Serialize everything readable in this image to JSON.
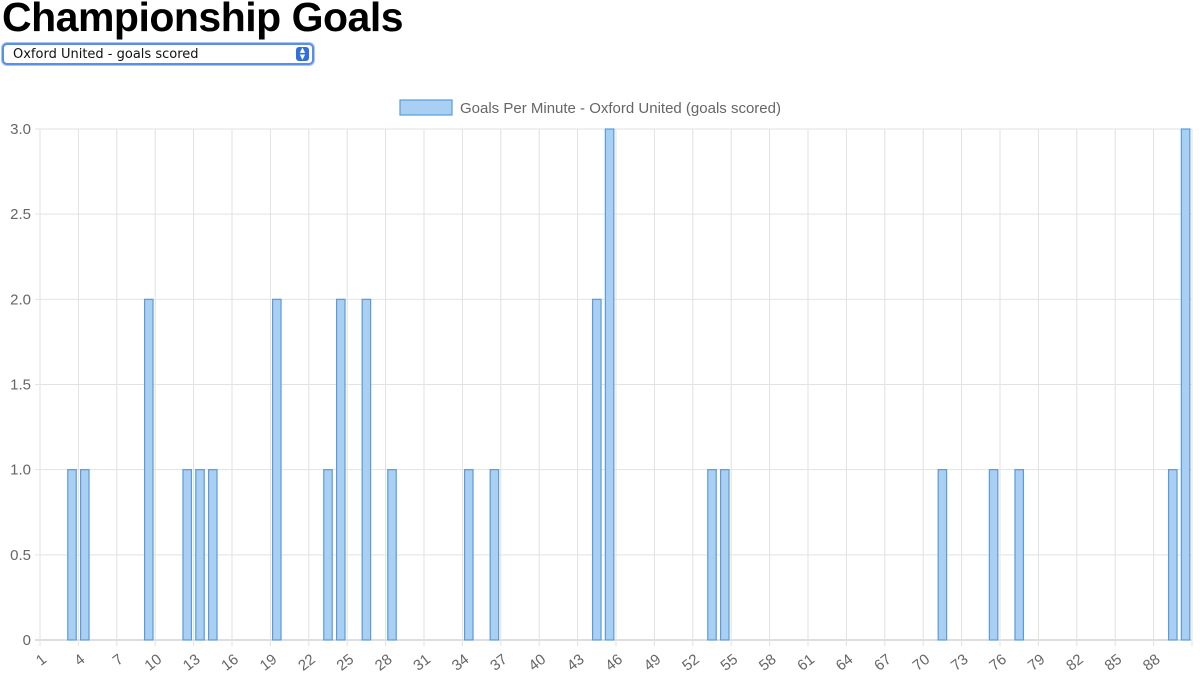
{
  "page": {
    "title": "Championship Goals",
    "select": {
      "selected": "Oxford United - goals scored",
      "arrows_icon": "up-down-chevron-icon"
    }
  },
  "colors": {
    "bar_fill": "#a9d0f3",
    "bar_border": "#5a9bd8",
    "grid": "#e2e2e2",
    "tick_text": "#666666"
  },
  "chart_data": {
    "type": "bar",
    "title": "",
    "legend": {
      "position": "top-center"
    },
    "xlabel": "",
    "ylabel": "",
    "ylim": [
      0,
      3
    ],
    "yticks": [
      "0",
      "0.5",
      "1.0",
      "1.5",
      "2.0",
      "2.5",
      "3.0"
    ],
    "categories": [
      1,
      2,
      3,
      4,
      5,
      6,
      7,
      8,
      9,
      10,
      11,
      12,
      13,
      14,
      15,
      16,
      17,
      18,
      19,
      20,
      21,
      22,
      23,
      24,
      25,
      26,
      27,
      28,
      29,
      30,
      31,
      32,
      33,
      34,
      35,
      36,
      37,
      38,
      39,
      40,
      41,
      42,
      43,
      44,
      45,
      46,
      47,
      48,
      49,
      50,
      51,
      52,
      53,
      54,
      55,
      56,
      57,
      58,
      59,
      60,
      61,
      62,
      63,
      64,
      65,
      66,
      67,
      68,
      69,
      70,
      71,
      72,
      73,
      74,
      75,
      76,
      77,
      78,
      79,
      80,
      81,
      82,
      83,
      84,
      85,
      86,
      87,
      88,
      89,
      90
    ],
    "x_tick_labels": [
      "1",
      "4",
      "7",
      "10",
      "13",
      "16",
      "19",
      "22",
      "25",
      "28",
      "31",
      "34",
      "37",
      "40",
      "43",
      "46",
      "49",
      "52",
      "55",
      "58",
      "61",
      "64",
      "67",
      "70",
      "73",
      "76",
      "79",
      "82",
      "85",
      "88"
    ],
    "grid": true,
    "series": [
      {
        "name": "Goals Per Minute - Oxford United (goals scored)",
        "values": [
          0,
          0,
          1,
          1,
          0,
          0,
          0,
          0,
          2,
          0,
          0,
          1,
          1,
          1,
          0,
          0,
          0,
          0,
          2,
          0,
          0,
          0,
          1,
          2,
          0,
          2,
          0,
          1,
          0,
          0,
          0,
          0,
          0,
          1,
          0,
          1,
          0,
          0,
          0,
          0,
          0,
          0,
          0,
          2,
          3,
          0,
          0,
          0,
          0,
          0,
          0,
          0,
          1,
          1,
          0,
          0,
          0,
          0,
          0,
          0,
          0,
          0,
          0,
          0,
          0,
          0,
          0,
          0,
          0,
          0,
          1,
          0,
          0,
          0,
          1,
          0,
          1,
          0,
          0,
          0,
          0,
          0,
          0,
          0,
          0,
          0,
          0,
          0,
          1,
          3
        ]
      }
    ]
  }
}
